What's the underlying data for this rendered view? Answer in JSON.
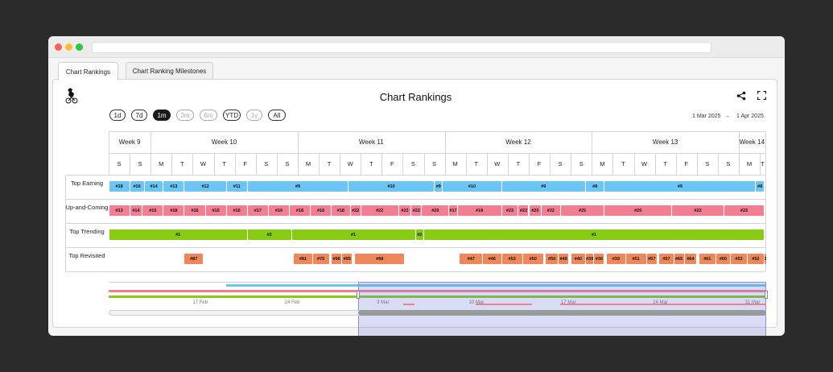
{
  "tabs": [
    {
      "label": "Chart Rankings",
      "active": true
    },
    {
      "label": "Chart Ranking Milestones",
      "active": false
    }
  ],
  "title": "Chart Rankings",
  "range_buttons": [
    {
      "label": "1d",
      "state": "normal"
    },
    {
      "label": "7d",
      "state": "normal"
    },
    {
      "label": "1m",
      "state": "selected"
    },
    {
      "label": "3m",
      "state": "disabled"
    },
    {
      "label": "6m",
      "state": "disabled"
    },
    {
      "label": "YTD",
      "state": "normal"
    },
    {
      "label": "1y",
      "state": "disabled"
    },
    {
      "label": "All",
      "state": "normal"
    }
  ],
  "date_range": {
    "start": "1 Mar 2025",
    "arrow": "→",
    "end": "1 Apr 2025"
  },
  "icons": {
    "logo": "kangaroo-cyclist-logo",
    "share": "share-icon",
    "fullscreen": "fullscreen-icon"
  },
  "colors": {
    "earning": "#6cc6f5",
    "upcoming": "#f47e91",
    "trending": "#86cc13",
    "revisited": "#f0875a"
  },
  "chart_data": {
    "type": "timeline",
    "x_axis": {
      "unit": "day",
      "start": "2025-03-01",
      "end": "2025-04-01"
    },
    "weeks": [
      {
        "label": "Week 9",
        "start": "2025-03-01",
        "end": "2025-03-02"
      },
      {
        "label": "Week 10",
        "start": "2025-03-03",
        "end": "2025-03-09"
      },
      {
        "label": "Week 11",
        "start": "2025-03-10",
        "end": "2025-03-16"
      },
      {
        "label": "Week 12",
        "start": "2025-03-17",
        "end": "2025-03-23"
      },
      {
        "label": "Week 13",
        "start": "2025-03-24",
        "end": "2025-03-30"
      },
      {
        "label": "Week 14",
        "start": "2025-03-31",
        "end": "2025-04-01"
      }
    ],
    "days": [
      "S",
      "S",
      "M",
      "T",
      "W",
      "T",
      "F",
      "S",
      "S",
      "M",
      "T",
      "W",
      "T",
      "F",
      "S",
      "S",
      "M",
      "T",
      "W",
      "T",
      "F",
      "S",
      "S",
      "M",
      "T",
      "W",
      "T",
      "F",
      "S",
      "S",
      "M",
      "T"
    ],
    "rows": [
      {
        "label": "Top Earning",
        "color": "#6cc6f5",
        "segments": [
          {
            "start": 0,
            "end": 1,
            "rank": "#18"
          },
          {
            "start": 1,
            "end": 1.7,
            "rank": "#16"
          },
          {
            "start": 1.7,
            "end": 2.6,
            "rank": "#14"
          },
          {
            "start": 2.6,
            "end": 3.6,
            "rank": "#13"
          },
          {
            "start": 3.6,
            "end": 5.6,
            "rank": "#12"
          },
          {
            "start": 5.6,
            "end": 6.6,
            "rank": "#11"
          },
          {
            "start": 6.6,
            "end": 11.4,
            "rank": "#9"
          },
          {
            "start": 11.4,
            "end": 15.5,
            "rank": "#10"
          },
          {
            "start": 15.5,
            "end": 15.9,
            "rank": "#9"
          },
          {
            "start": 15.9,
            "end": 18.7,
            "rank": "#10"
          },
          {
            "start": 18.7,
            "end": 22.7,
            "rank": "#9"
          },
          {
            "start": 22.7,
            "end": 23.6,
            "rank": "#8"
          },
          {
            "start": 23.6,
            "end": 30.8,
            "rank": "#9"
          },
          {
            "start": 30.8,
            "end": 31.2,
            "rank": "#8"
          }
        ]
      },
      {
        "label": "Up-and-Coming",
        "color": "#f47e91",
        "segments": [
          {
            "start": 0,
            "end": 1,
            "rank": "#13"
          },
          {
            "start": 1,
            "end": 1.6,
            "rank": "#14"
          },
          {
            "start": 1.6,
            "end": 2.6,
            "rank": "#15"
          },
          {
            "start": 2.6,
            "end": 3.6,
            "rank": "#18"
          },
          {
            "start": 3.6,
            "end": 4.6,
            "rank": "#16"
          },
          {
            "start": 4.6,
            "end": 5.6,
            "rank": "#15"
          },
          {
            "start": 5.6,
            "end": 6.6,
            "rank": "#16"
          },
          {
            "start": 6.6,
            "end": 7.6,
            "rank": "#17"
          },
          {
            "start": 7.6,
            "end": 8.6,
            "rank": "#19"
          },
          {
            "start": 8.6,
            "end": 9.6,
            "rank": "#18"
          },
          {
            "start": 9.6,
            "end": 10.6,
            "rank": "#16"
          },
          {
            "start": 10.6,
            "end": 11.5,
            "rank": "#18"
          },
          {
            "start": 11.5,
            "end": 12.0,
            "rank": "#22"
          },
          {
            "start": 12.0,
            "end": 13.8,
            "rank": "#22"
          },
          {
            "start": 13.8,
            "end": 14.4,
            "rank": "#23"
          },
          {
            "start": 14.4,
            "end": 14.9,
            "rank": "#22"
          },
          {
            "start": 14.9,
            "end": 16.2,
            "rank": "#20"
          },
          {
            "start": 16.2,
            "end": 16.6,
            "rank": "#17"
          },
          {
            "start": 16.6,
            "end": 18.7,
            "rank": "#19"
          },
          {
            "start": 18.7,
            "end": 19.5,
            "rank": "#23"
          },
          {
            "start": 19.5,
            "end": 20.0,
            "rank": "#22"
          },
          {
            "start": 20.0,
            "end": 20.6,
            "rank": "#20"
          },
          {
            "start": 20.6,
            "end": 21.5,
            "rank": "#22"
          },
          {
            "start": 21.5,
            "end": 23.6,
            "rank": "#25"
          },
          {
            "start": 23.6,
            "end": 26.8,
            "rank": "#20"
          },
          {
            "start": 26.8,
            "end": 29.3,
            "rank": "#22"
          },
          {
            "start": 29.3,
            "end": 31.2,
            "rank": "#23"
          }
        ]
      },
      {
        "label": "Top Trending",
        "color": "#86cc13",
        "segments": [
          {
            "start": 0,
            "end": 6.6,
            "rank": "#1"
          },
          {
            "start": 6.6,
            "end": 8.7,
            "rank": "#2"
          },
          {
            "start": 8.7,
            "end": 14.6,
            "rank": "#1"
          },
          {
            "start": 14.6,
            "end": 15.0,
            "rank": "#2"
          },
          {
            "start": 15.0,
            "end": 31.2,
            "rank": "#1"
          }
        ]
      },
      {
        "label": "Top Revisited",
        "color": "#f0875a",
        "segments": [
          {
            "start": 3.6,
            "end": 4.5,
            "rank": "#87"
          },
          {
            "start": 8.8,
            "end": 9.7,
            "rank": "#81"
          },
          {
            "start": 9.7,
            "end": 10.5,
            "rank": "#75"
          },
          {
            "start": 10.6,
            "end": 11.1,
            "rank": "#96"
          },
          {
            "start": 11.1,
            "end": 11.6,
            "rank": "#95"
          },
          {
            "start": 11.7,
            "end": 14.1,
            "rank": "#98"
          },
          {
            "start": 16.7,
            "end": 17.8,
            "rank": "#47"
          },
          {
            "start": 17.8,
            "end": 18.7,
            "rank": "#46"
          },
          {
            "start": 18.7,
            "end": 19.7,
            "rank": "#53"
          },
          {
            "start": 19.7,
            "end": 20.7,
            "rank": "#50"
          },
          {
            "start": 20.8,
            "end": 21.4,
            "rank": "#50"
          },
          {
            "start": 21.4,
            "end": 21.9,
            "rank": "#49"
          },
          {
            "start": 22.0,
            "end": 22.7,
            "rank": "#40"
          },
          {
            "start": 22.7,
            "end": 23.1,
            "rank": "#39"
          },
          {
            "start": 23.1,
            "end": 23.6,
            "rank": "#36"
          },
          {
            "start": 23.7,
            "end": 24.6,
            "rank": "#39"
          },
          {
            "start": 24.6,
            "end": 25.6,
            "rank": "#51"
          },
          {
            "start": 25.6,
            "end": 26.1,
            "rank": "#57"
          },
          {
            "start": 26.2,
            "end": 26.9,
            "rank": "#57"
          },
          {
            "start": 26.9,
            "end": 27.4,
            "rank": "#65"
          },
          {
            "start": 27.4,
            "end": 28.0,
            "rank": "#64"
          },
          {
            "start": 28.1,
            "end": 28.9,
            "rank": "#61"
          },
          {
            "start": 28.9,
            "end": 29.6,
            "rank": "#60"
          },
          {
            "start": 29.6,
            "end": 30.4,
            "rank": "#53"
          },
          {
            "start": 30.4,
            "end": 31.2,
            "rank": "#52"
          },
          {
            "start": 31.2,
            "end": 31.6,
            "rank": "#22"
          }
        ]
      }
    ],
    "navigator": {
      "ticks": [
        "17 Feb",
        "24 Feb",
        "3 Mar",
        "10 Mar",
        "17 Mar",
        "24 Mar",
        "31 Mar"
      ],
      "selected_start": "2025-03-01",
      "selected_end": "2025-04-01"
    }
  }
}
